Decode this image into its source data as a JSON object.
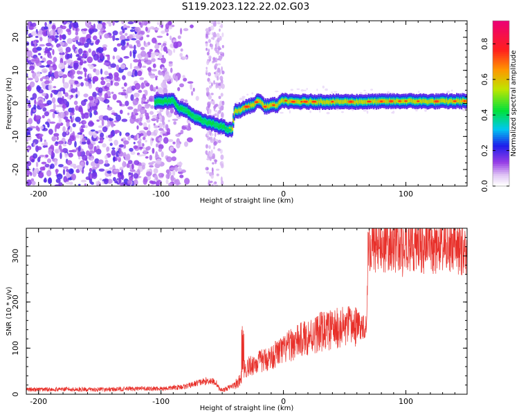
{
  "title": "S119.2023.122.22.02.G03",
  "chart_data": [
    {
      "type": "heatmap",
      "xlabel": "Height of straight line (km)",
      "ylabel": "Frequency (Hz)",
      "xlim": [
        -210,
        150
      ],
      "ylim": [
        -25,
        25
      ],
      "xticks": [
        -200,
        -100,
        0,
        100
      ],
      "yticks": [
        -20,
        -10,
        0,
        10,
        20
      ],
      "ridge": {
        "x": [
          -100,
          -90,
          -85,
          -80,
          -75,
          -70,
          -65,
          -60,
          -55,
          -50,
          -45,
          -42,
          -40,
          -35,
          -30,
          -25,
          -20,
          -15,
          -10,
          -5,
          0,
          5,
          10,
          20,
          40,
          60,
          80,
          100,
          120,
          150
        ],
        "freq": [
          0.5,
          0.8,
          -1.5,
          -2.0,
          -3.5,
          -4.5,
          -5.5,
          -6.0,
          -6.5,
          -7.0,
          -8.0,
          -8.0,
          -2.5,
          -2.0,
          -1.0,
          -0.5,
          1.0,
          -1.0,
          -0.5,
          -0.5,
          1.0,
          0.5,
          0.5,
          0.5,
          0.5,
          0.5,
          0.6,
          0.7,
          0.6,
          0.7
        ]
      },
      "colorbar": {
        "label": "Normalized spectral amplitude",
        "ticks": [
          0.0,
          0.2,
          0.4,
          0.6,
          0.8
        ],
        "range": [
          0,
          0.93
        ]
      }
    },
    {
      "type": "line",
      "xlabel": "Height of straight line (km)",
      "ylabel": "SNR (10 * v/v)",
      "xlim": [
        -210,
        150
      ],
      "ylim": [
        0,
        360
      ],
      "xticks": [
        -200,
        -100,
        0,
        100
      ],
      "yticks": [
        0,
        100,
        200,
        300
      ],
      "color": "#e8302a",
      "series": [
        {
          "x": [
            -210,
            -180,
            -150,
            -120,
            -100,
            -90,
            -80,
            -75,
            -70,
            -65,
            -60,
            -55,
            -52,
            -48,
            -45,
            -40,
            -35,
            -33,
            -31,
            -28,
            -25,
            -20,
            -15,
            -10,
            -5,
            0,
            5,
            10,
            20,
            30,
            40,
            50,
            60,
            68,
            69,
            72,
            80,
            90,
            97,
            98,
            99,
            105,
            120,
            150
          ],
          "values": [
            10,
            11,
            10,
            12,
            12,
            14,
            17,
            20,
            25,
            27,
            30,
            25,
            10,
            10,
            14,
            20,
            30,
            60,
            55,
            60,
            65,
            70,
            75,
            80,
            90,
            95,
            105,
            112,
            125,
            135,
            140,
            145,
            148,
            150,
            322,
            325,
            322,
            325,
            320,
            260,
            330,
            325,
            320,
            318
          ]
        }
      ]
    }
  ]
}
